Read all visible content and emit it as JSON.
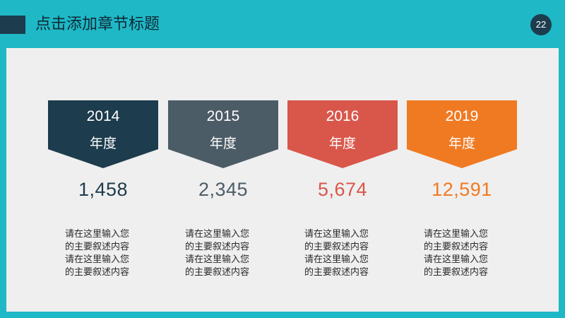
{
  "header": {
    "title": "点击添加章节标题",
    "page_number": "22"
  },
  "cards": [
    {
      "year": "2014",
      "label": "年度",
      "value": "1,458",
      "description": "请在这里输入您\n的主要叙述内容\n请在这里输入您\n的主要叙述内容",
      "color": "#1d3c4d"
    },
    {
      "year": "2015",
      "label": "年度",
      "value": "2,345",
      "description": "请在这里输入您\n的主要叙述内容\n请在这里输入您\n的主要叙述内容",
      "color": "#4c5c67"
    },
    {
      "year": "2016",
      "label": "年度",
      "value": "5,674",
      "description": "请在这里输入您\n的主要叙述内容\n请在这里输入您\n的主要叙述内容",
      "color": "#d9574a"
    },
    {
      "year": "2019",
      "label": "年度",
      "value": "12,591",
      "description": "请在这里输入您\n的主要叙述内容\n请在这里输入您\n的主要叙述内容",
      "color": "#f07a22"
    }
  ]
}
